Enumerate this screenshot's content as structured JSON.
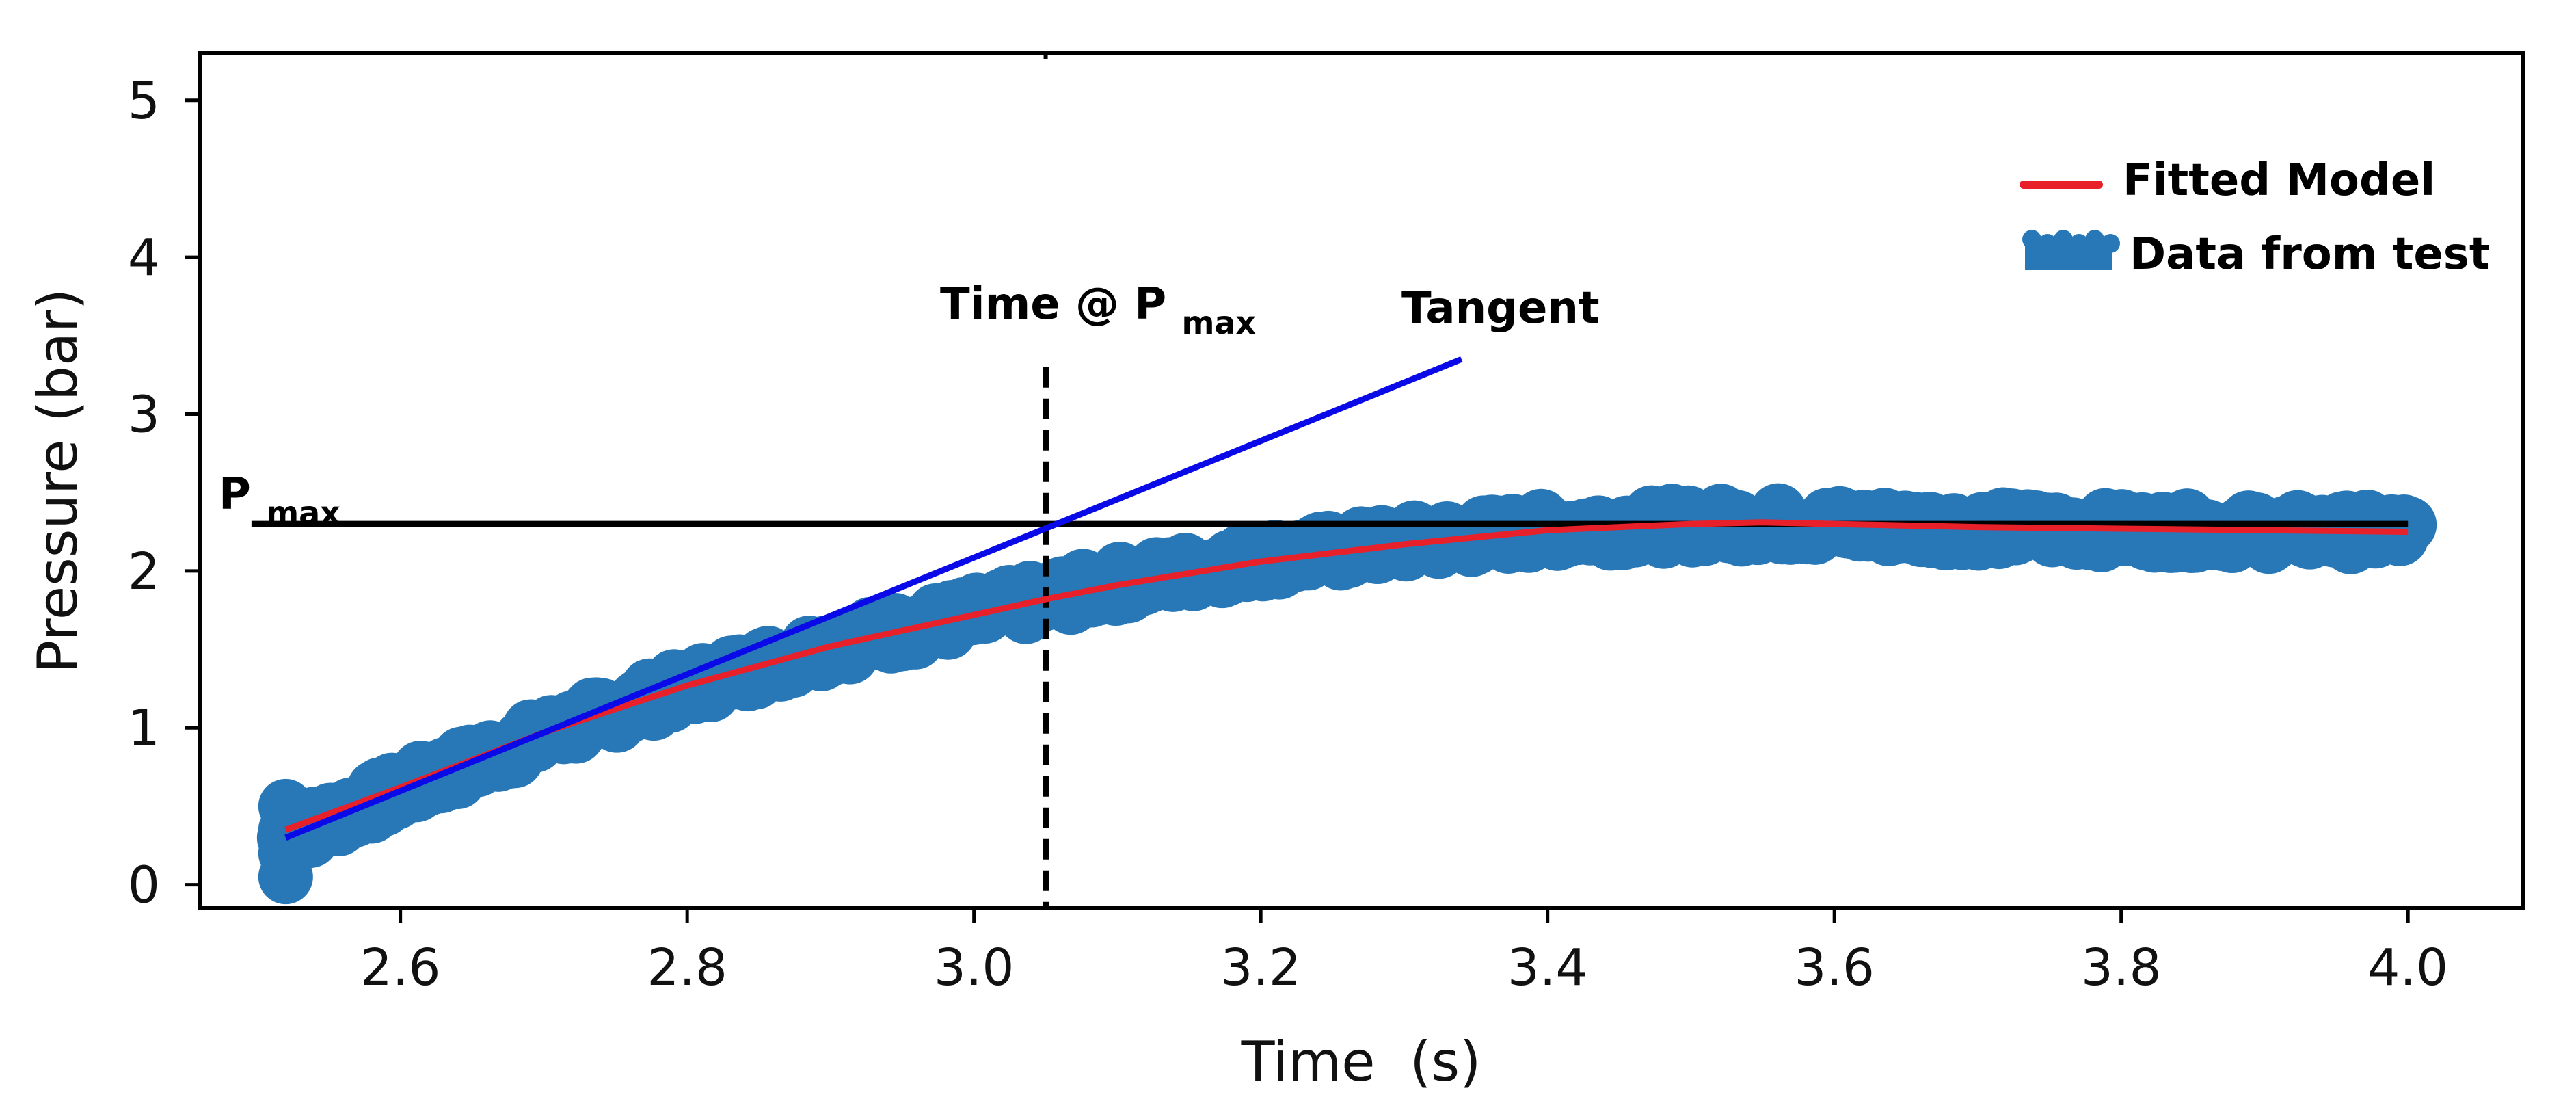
{
  "chart_data": {
    "type": "line",
    "title": "",
    "xlabel": "Time  (s)",
    "ylabel": "Pressure (bar)",
    "xlim": [
      2.46,
      4.08
    ],
    "ylim": [
      -0.15,
      5.3
    ],
    "xticks": [
      2.6,
      2.8,
      3.0,
      3.2,
      3.4,
      3.6,
      3.8,
      4.0
    ],
    "xtick_labels": [
      "2.6",
      "2.8",
      "3.0",
      "3.2",
      "3.4",
      "3.6",
      "3.8",
      "4.0"
    ],
    "yticks": [
      0,
      1,
      2,
      3,
      4,
      5
    ],
    "ytick_labels": [
      "0",
      "1",
      "2",
      "3",
      "4",
      "5"
    ],
    "grid": false,
    "legend_position": "top-right",
    "colors": {
      "fitted": "#e8202a",
      "data": "#2878b8",
      "tangent": "#0a0ae8",
      "reference": "#000000"
    },
    "series": [
      {
        "name": "Fitted Model",
        "style": "line",
        "x": [
          2.52,
          2.6,
          2.7,
          2.8,
          2.9,
          3.0,
          3.05,
          3.1,
          3.2,
          3.3,
          3.4,
          3.5,
          3.55,
          3.6,
          3.7,
          3.8,
          3.9,
          4.0
        ],
        "y": [
          0.35,
          0.62,
          0.97,
          1.27,
          1.52,
          1.72,
          1.82,
          1.91,
          2.06,
          2.17,
          2.26,
          2.3,
          2.31,
          2.3,
          2.28,
          2.27,
          2.26,
          2.25
        ]
      },
      {
        "name": "Data from test",
        "style": "band",
        "x": [
          2.52,
          2.6,
          2.7,
          2.8,
          2.9,
          3.0,
          3.05,
          3.1,
          3.2,
          3.3,
          3.4,
          3.5,
          3.55,
          3.6,
          3.7,
          3.8,
          3.9,
          4.0
        ],
        "y": [
          0.3,
          0.6,
          0.95,
          1.26,
          1.52,
          1.72,
          1.82,
          1.92,
          2.07,
          2.18,
          2.26,
          2.29,
          2.3,
          2.29,
          2.27,
          2.26,
          2.25,
          2.25
        ],
        "spread": 0.16
      }
    ],
    "annotations": {
      "pmax": {
        "label": "P",
        "sub": "max",
        "value": 2.3,
        "x_from": 2.52,
        "x_to": 4.0
      },
      "time_at_pmax": {
        "label": "Time @ P",
        "sub": "max",
        "x": 3.05,
        "y_top": 3.3
      },
      "tangent": {
        "label": "Tangent",
        "from": [
          2.52,
          0.3
        ],
        "to": [
          3.34,
          3.35
        ]
      }
    }
  }
}
